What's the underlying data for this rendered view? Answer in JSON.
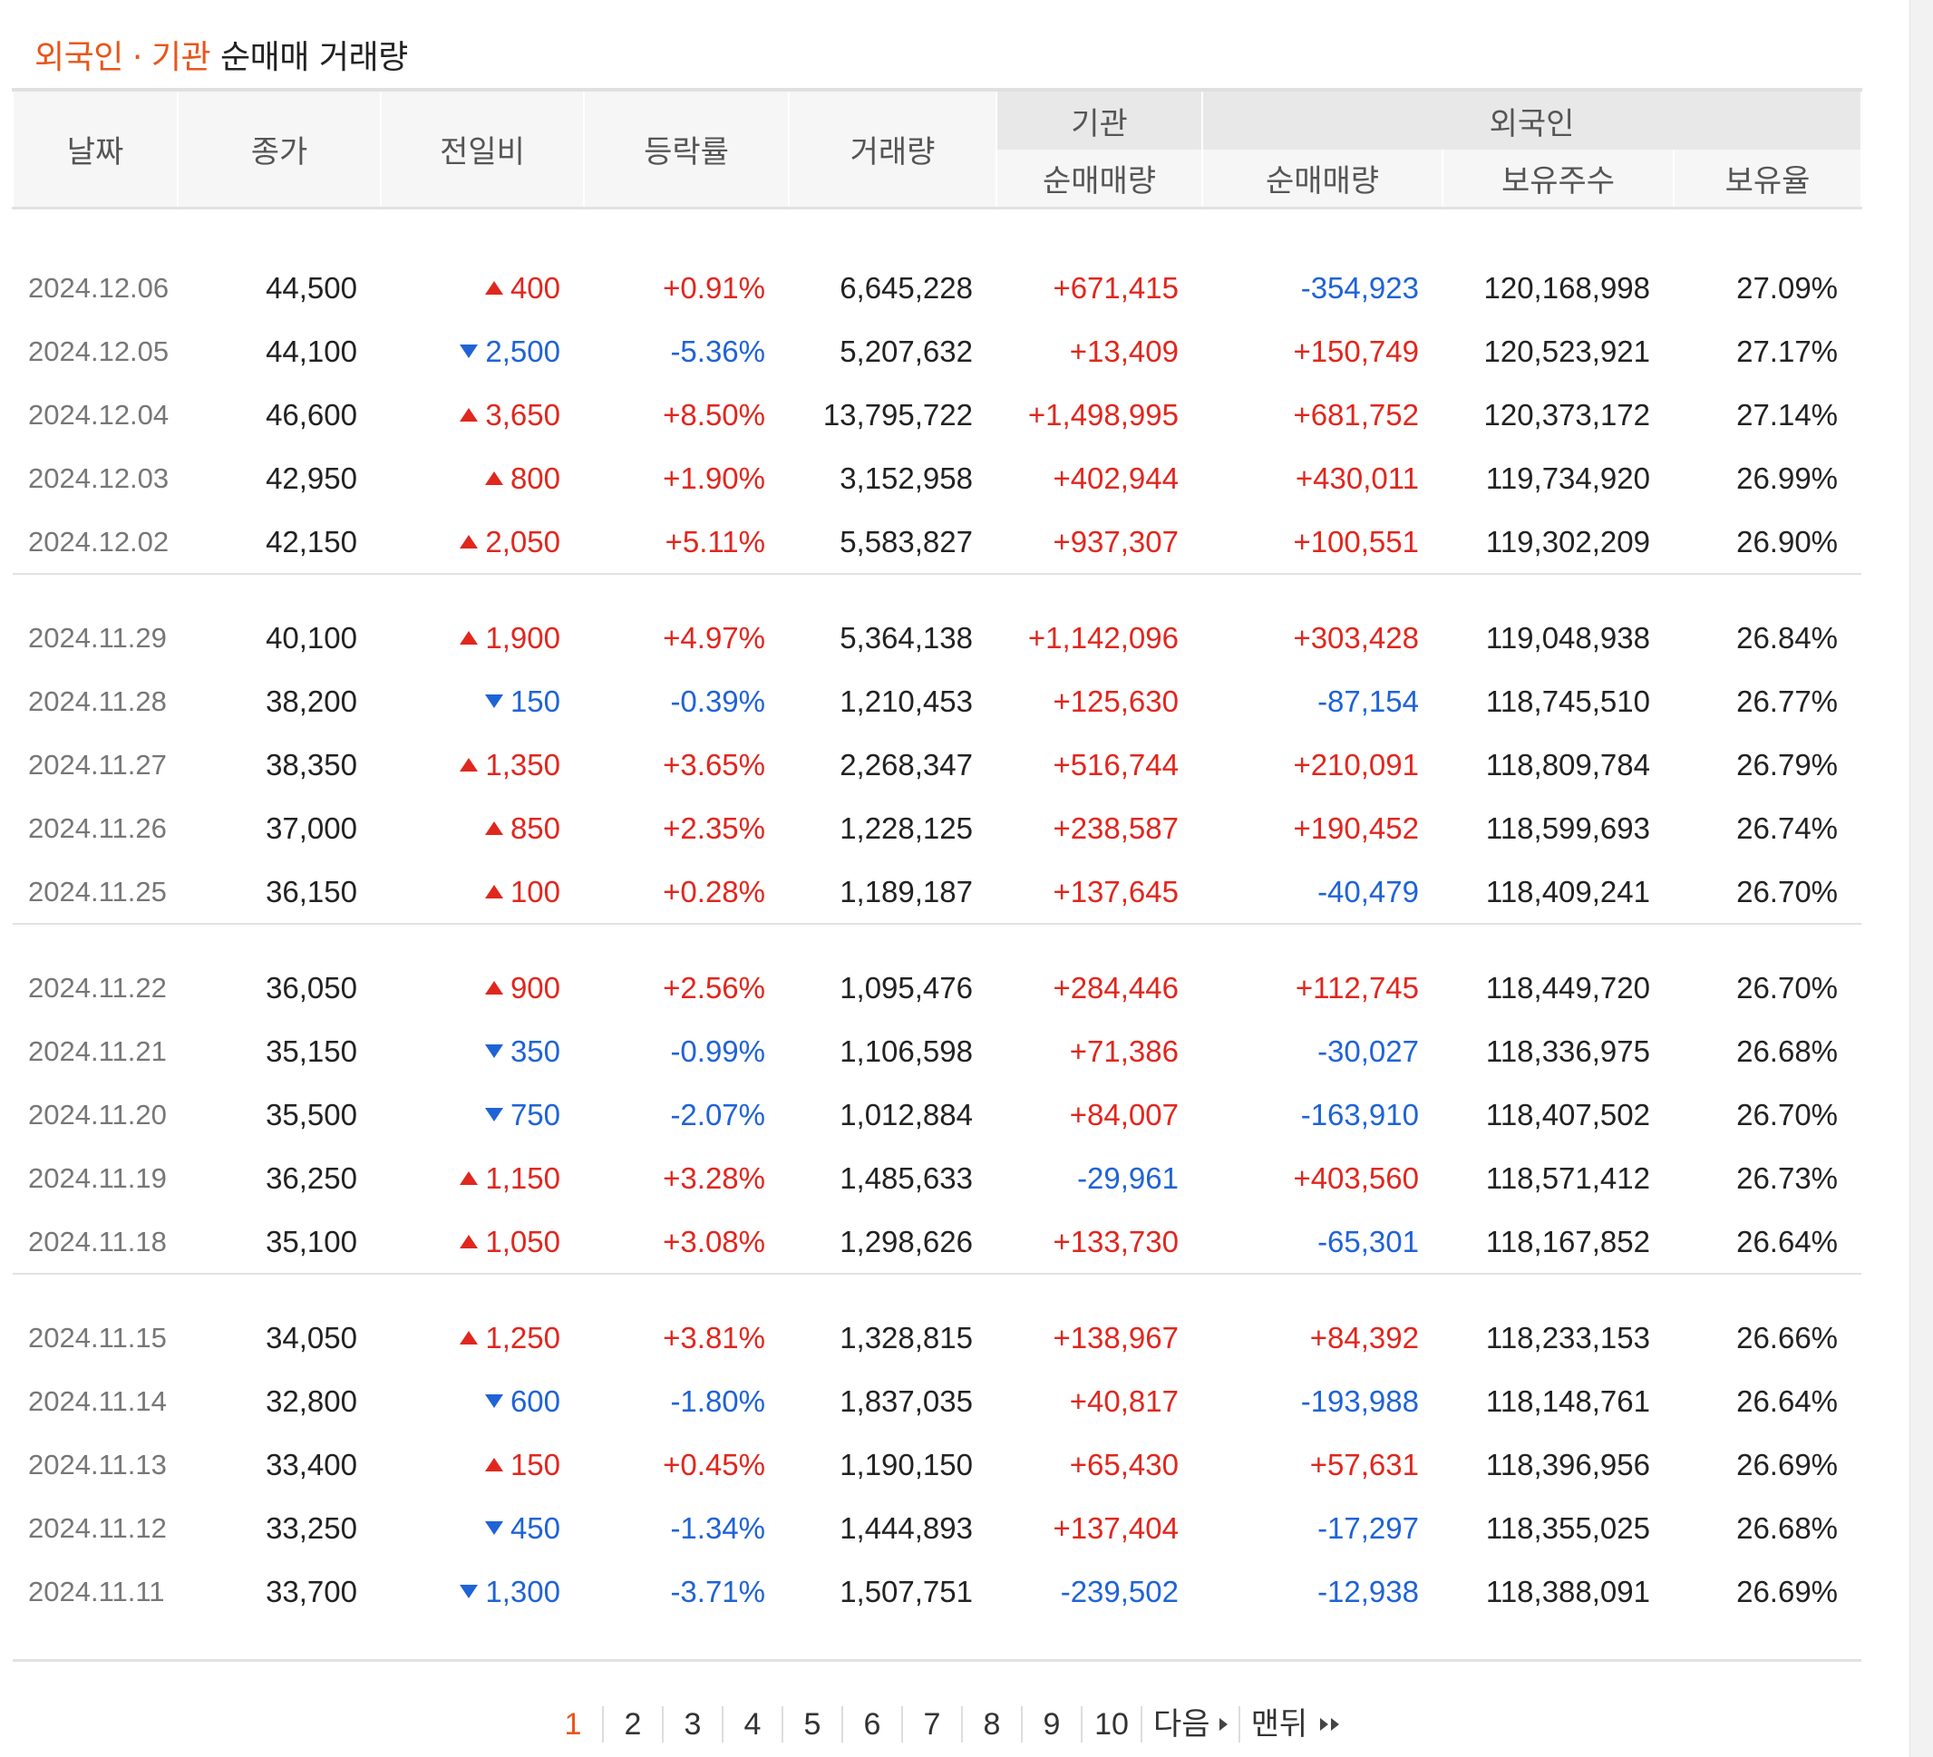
{
  "title": {
    "foreign": "외국인",
    "sep": "·",
    "institution": "기관",
    "rest": "순매매 거래량"
  },
  "headers": {
    "date": "날짜",
    "close": "종가",
    "change": "전일비",
    "rate": "등락률",
    "volume": "거래량",
    "inst_group": "기관",
    "inst_net": "순매매량",
    "foreign_group": "외국인",
    "foreign_net": "순매매량",
    "foreign_hold": "보유주수",
    "foreign_ratio": "보유율"
  },
  "colors": {
    "up": "#e0271e",
    "down": "#1f63d6",
    "accent": "#e8561b"
  },
  "groups": [
    [
      [
        "2024.12.06",
        "44,500",
        "up",
        "400",
        "+0.91%",
        "6,645,228",
        "+671,415",
        "-354,923",
        "120,168,998",
        "27.09%"
      ],
      [
        "2024.12.05",
        "44,100",
        "down",
        "2,500",
        "-5.36%",
        "5,207,632",
        "+13,409",
        "+150,749",
        "120,523,921",
        "27.17%"
      ],
      [
        "2024.12.04",
        "46,600",
        "up",
        "3,650",
        "+8.50%",
        "13,795,722",
        "+1,498,995",
        "+681,752",
        "120,373,172",
        "27.14%"
      ],
      [
        "2024.12.03",
        "42,950",
        "up",
        "800",
        "+1.90%",
        "3,152,958",
        "+402,944",
        "+430,011",
        "119,734,920",
        "26.99%"
      ],
      [
        "2024.12.02",
        "42,150",
        "up",
        "2,050",
        "+5.11%",
        "5,583,827",
        "+937,307",
        "+100,551",
        "119,302,209",
        "26.90%"
      ]
    ],
    [
      [
        "2024.11.29",
        "40,100",
        "up",
        "1,900",
        "+4.97%",
        "5,364,138",
        "+1,142,096",
        "+303,428",
        "119,048,938",
        "26.84%"
      ],
      [
        "2024.11.28",
        "38,200",
        "down",
        "150",
        "-0.39%",
        "1,210,453",
        "+125,630",
        "-87,154",
        "118,745,510",
        "26.77%"
      ],
      [
        "2024.11.27",
        "38,350",
        "up",
        "1,350",
        "+3.65%",
        "2,268,347",
        "+516,744",
        "+210,091",
        "118,809,784",
        "26.79%"
      ],
      [
        "2024.11.26",
        "37,000",
        "up",
        "850",
        "+2.35%",
        "1,228,125",
        "+238,587",
        "+190,452",
        "118,599,693",
        "26.74%"
      ],
      [
        "2024.11.25",
        "36,150",
        "up",
        "100",
        "+0.28%",
        "1,189,187",
        "+137,645",
        "-40,479",
        "118,409,241",
        "26.70%"
      ]
    ],
    [
      [
        "2024.11.22",
        "36,050",
        "up",
        "900",
        "+2.56%",
        "1,095,476",
        "+284,446",
        "+112,745",
        "118,449,720",
        "26.70%"
      ],
      [
        "2024.11.21",
        "35,150",
        "down",
        "350",
        "-0.99%",
        "1,106,598",
        "+71,386",
        "-30,027",
        "118,336,975",
        "26.68%"
      ],
      [
        "2024.11.20",
        "35,500",
        "down",
        "750",
        "-2.07%",
        "1,012,884",
        "+84,007",
        "-163,910",
        "118,407,502",
        "26.70%"
      ],
      [
        "2024.11.19",
        "36,250",
        "up",
        "1,150",
        "+3.28%",
        "1,485,633",
        "-29,961",
        "+403,560",
        "118,571,412",
        "26.73%"
      ],
      [
        "2024.11.18",
        "35,100",
        "up",
        "1,050",
        "+3.08%",
        "1,298,626",
        "+133,730",
        "-65,301",
        "118,167,852",
        "26.64%"
      ]
    ],
    [
      [
        "2024.11.15",
        "34,050",
        "up",
        "1,250",
        "+3.81%",
        "1,328,815",
        "+138,967",
        "+84,392",
        "118,233,153",
        "26.66%"
      ],
      [
        "2024.11.14",
        "32,800",
        "down",
        "600",
        "-1.80%",
        "1,837,035",
        "+40,817",
        "-193,988",
        "118,148,761",
        "26.64%"
      ],
      [
        "2024.11.13",
        "33,400",
        "up",
        "150",
        "+0.45%",
        "1,190,150",
        "+65,430",
        "+57,631",
        "118,396,956",
        "26.69%"
      ],
      [
        "2024.11.12",
        "33,250",
        "down",
        "450",
        "-1.34%",
        "1,444,893",
        "+137,404",
        "-17,297",
        "118,355,025",
        "26.68%"
      ],
      [
        "2024.11.11",
        "33,700",
        "down",
        "1,300",
        "-3.71%",
        "1,507,751",
        "-239,502",
        "-12,938",
        "118,388,091",
        "26.69%"
      ]
    ]
  ],
  "pager": {
    "pages": [
      "1",
      "2",
      "3",
      "4",
      "5",
      "6",
      "7",
      "8",
      "9",
      "10"
    ],
    "active": "1",
    "next": "다음",
    "last": "맨뒤"
  }
}
